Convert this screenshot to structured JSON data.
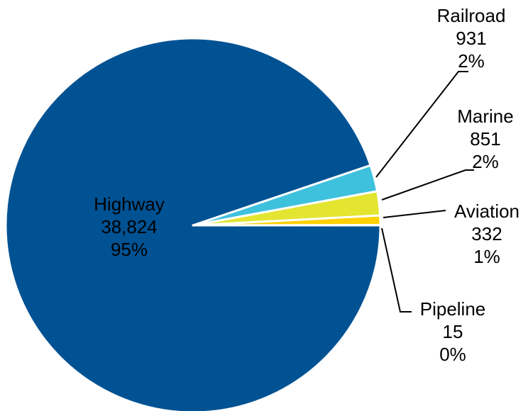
{
  "chart_data": {
    "type": "pie",
    "title": "",
    "categories": [
      "Highway",
      "Railroad",
      "Marine",
      "Aviation",
      "Pipeline"
    ],
    "values": [
      38824,
      931,
      851,
      332,
      15
    ],
    "percent_labels": [
      "95%",
      "2%",
      "2%",
      "1%",
      "0%"
    ],
    "value_labels": [
      "38,824",
      "931",
      "851",
      "332",
      "15"
    ],
    "colors": [
      "#005293",
      "#3EC1DD",
      "#E3E530",
      "#FFD100",
      "#FFD100"
    ],
    "legend": "none"
  }
}
